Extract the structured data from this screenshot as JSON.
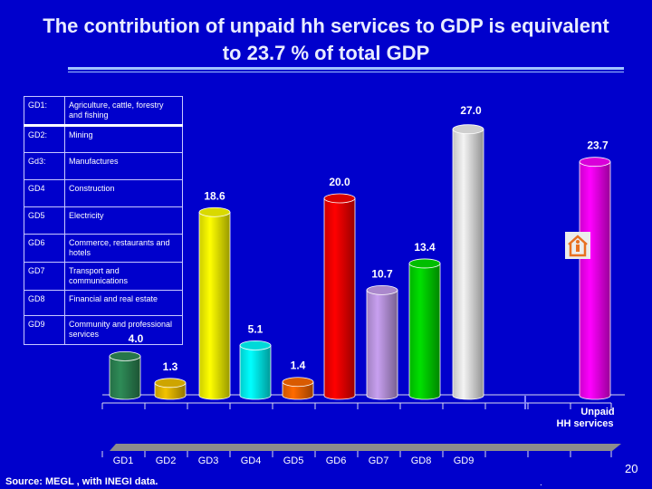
{
  "title": "The contribution of unpaid hh services to  GDP is equivalent to  23.7 % of total GDP",
  "legend": [
    {
      "code": "GD1:",
      "label": "Agriculture, cattle, forestry and fishing"
    },
    {
      "code": "GD2:",
      "label": "Mining"
    },
    {
      "code": "Gd3:",
      "label": "Manufactures"
    },
    {
      "code": "GD4",
      "label": "Construction"
    },
    {
      "code": "GD5",
      "label": "Electricity"
    },
    {
      "code": "GD6",
      "label": "Commerce, restaurants and hotels"
    },
    {
      "code": "GD7",
      "label": "Transport and communications"
    },
    {
      "code": "GD8",
      "label": "Financial and real estate"
    },
    {
      "code": "GD9",
      "label": "Community and professional services"
    }
  ],
  "source": "Source: MEGL , with INEGI data.",
  "page_number": "20",
  "footer_dot": ".",
  "house_icon": "house-with-person-icon",
  "chart_data": {
    "type": "bar",
    "style": "3d-cylinder",
    "categories": [
      "GD1",
      "GD2",
      "GD3",
      "GD4",
      "GD5",
      "GD6",
      "GD7",
      "GD8",
      "GD9",
      "Unpaid HH services"
    ],
    "category_labels": [
      "GD1",
      "GD2",
      "GD3",
      "GD4",
      "GD5",
      "GD6",
      "GD7",
      "GD8",
      "GD9",
      ""
    ],
    "unpaid_label": "Unpaid HH services",
    "values": [
      4.0,
      1.3,
      18.6,
      5.1,
      1.4,
      20.0,
      10.7,
      13.4,
      27.0,
      23.7
    ],
    "data_labels": [
      "4.0",
      "1.3",
      "18.6",
      "5.1",
      "1.4",
      "20.0",
      "10.7",
      "13.4",
      "27.0",
      "23.7"
    ],
    "colors": [
      "#2e8b57",
      "#f2c200",
      "#ffff00",
      "#00ffff",
      "#ff6a00",
      "#ff0000",
      "#c8a0f0",
      "#00e000",
      "#f4f4f4",
      "#ff00ff"
    ],
    "background": "#0000cc",
    "ylim": [
      0,
      27.0
    ],
    "grid": false,
    "legend": "left-table"
  }
}
